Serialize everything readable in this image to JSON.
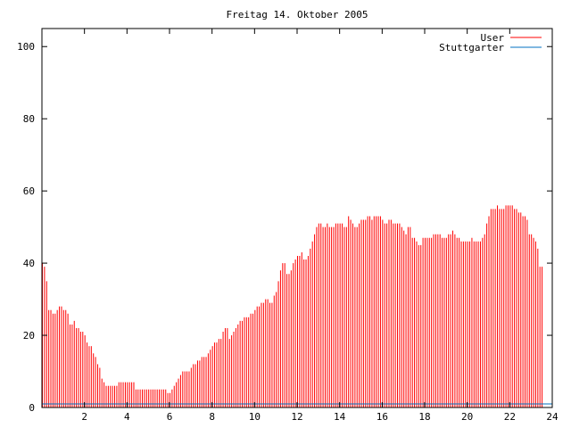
{
  "chart_data": {
    "type": "bar",
    "title": "Freitag 14. Oktober 2005",
    "xlim": [
      0,
      24
    ],
    "ylim": [
      0,
      105
    ],
    "x_ticks": [
      2,
      4,
      6,
      8,
      10,
      12,
      14,
      16,
      18,
      20,
      22,
      24
    ],
    "y_ticks": [
      0,
      20,
      40,
      60,
      80,
      100
    ],
    "legend_position": "top-right",
    "sample_interval_hours": 0.1,
    "colors": {
      "User": "#ff0000",
      "Stuttgarter": "#0070c0"
    },
    "series": [
      {
        "name": "User",
        "color": "#ff0000",
        "values": [
          40,
          39,
          35,
          27,
          27,
          26,
          26,
          27,
          28,
          28,
          27,
          27,
          26,
          23,
          23,
          24,
          22,
          22,
          21,
          21,
          20,
          18,
          17,
          17,
          15,
          14,
          12,
          11,
          8,
          7,
          6,
          6,
          6,
          6,
          6,
          6,
          7,
          7,
          7,
          7,
          7,
          7,
          7,
          7,
          5,
          5,
          5,
          5,
          5,
          5,
          5,
          5,
          5,
          5,
          5,
          5,
          5,
          5,
          5,
          4,
          4,
          5,
          6,
          7,
          8,
          9,
          10,
          10,
          10,
          10,
          11,
          12,
          12,
          13,
          13,
          14,
          14,
          14,
          15,
          16,
          17,
          18,
          18,
          19,
          19,
          21,
          22,
          22,
          19,
          20,
          21,
          22,
          23,
          24,
          24,
          25,
          25,
          25,
          26,
          26,
          27,
          28,
          28,
          29,
          29,
          30,
          30,
          29,
          29,
          31,
          32,
          35,
          38,
          40,
          40,
          37,
          37,
          38,
          40,
          41,
          42,
          42,
          43,
          41,
          41,
          42,
          44,
          46,
          48,
          50,
          51,
          51,
          50,
          50,
          51,
          50,
          50,
          50,
          51,
          51,
          51,
          51,
          50,
          50,
          53,
          52,
          51,
          50,
          50,
          51,
          52,
          52,
          52,
          53,
          53,
          52,
          53,
          53,
          53,
          53,
          52,
          51,
          51,
          52,
          52,
          51,
          51,
          51,
          51,
          50,
          49,
          48,
          50,
          50,
          47,
          47,
          46,
          45,
          45,
          47,
          47,
          47,
          47,
          47,
          48,
          48,
          48,
          48,
          47,
          47,
          47,
          48,
          48,
          49,
          48,
          47,
          47,
          46,
          46,
          46,
          46,
          46,
          47,
          46,
          46,
          46,
          46,
          47,
          48,
          51,
          53,
          55,
          55,
          55,
          56,
          55,
          55,
          55,
          56,
          56,
          56,
          56,
          55,
          55,
          54,
          54,
          53,
          53,
          52,
          48,
          48,
          47,
          46,
          44,
          39,
          39
        ]
      },
      {
        "name": "Stuttgarter",
        "color": "#0070c0",
        "values": [
          1,
          1,
          1,
          1,
          1,
          1,
          1,
          1,
          1,
          1,
          1,
          1,
          1,
          1,
          1,
          1,
          1,
          1,
          1,
          1,
          1,
          1,
          1,
          1,
          1
        ]
      }
    ]
  }
}
